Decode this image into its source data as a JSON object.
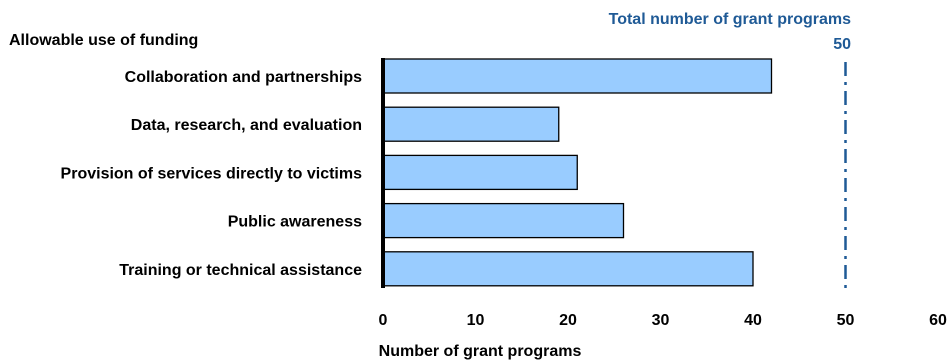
{
  "chart_data": {
    "type": "bar",
    "orientation": "horizontal",
    "category_header": "Allowable use of funding",
    "categories": [
      "Collaboration and partnerships",
      "Data, research, and evaluation",
      "Provision of services directly to victims",
      "Public awareness",
      "Training or technical assistance"
    ],
    "values": [
      42,
      19,
      21,
      26,
      40
    ],
    "xlabel": "Number of grant programs",
    "xlim": [
      0,
      60
    ],
    "xticks": [
      "0",
      "10",
      "20",
      "30",
      "40",
      "50",
      "60"
    ],
    "reference_line": {
      "value": 50,
      "label": "Total number of grant programs",
      "value_label": "50",
      "color": "#1f5a96",
      "style": "dash-dot"
    },
    "bar_color": "#99ccff",
    "bar_edge_color": "#000000",
    "grid": false,
    "legend": "none"
  }
}
